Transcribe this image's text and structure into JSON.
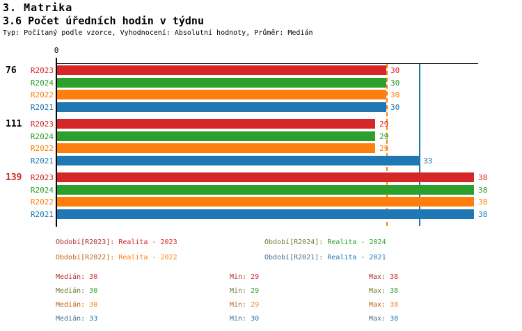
{
  "header": {
    "title": "3. Matrika",
    "subtitle": "3.6 Počet úředních hodin v týdnu",
    "meta": "Typ: Počítaný podle vzorce, Vyhodnocení: Absolutní hodnoty, Průměr: Medián"
  },
  "chart_data": {
    "type": "bar",
    "orientation": "horizontal",
    "title": "3.6 Počet úředních hodin v týdnu",
    "xlim": [
      0,
      38
    ],
    "origin_tick_label": "0",
    "grid": false,
    "row_order": [
      "R2023",
      "R2024",
      "R2022",
      "R2021"
    ],
    "series_meta": [
      {
        "id": "R2023",
        "color": "#d62728",
        "dark_color": "#b03030",
        "legend_label": "Období[R2023]:",
        "legend_value": "Realita - 2023"
      },
      {
        "id": "R2024",
        "color": "#2ca02c",
        "dark_color": "#6e7d2e",
        "legend_label": "Období[R2024]:",
        "legend_value": "Realita - 2024"
      },
      {
        "id": "R2022",
        "color": "#ff7f0e",
        "dark_color": "#bf6515",
        "legend_label": "Období[R2022]:",
        "legend_value": "Realita - 2022"
      },
      {
        "id": "R2021",
        "color": "#1f77b4",
        "dark_color": "#46708e",
        "legend_label": "Období[R2021]:",
        "legend_value": "Realita - 2021"
      }
    ],
    "groups": [
      {
        "label": "76",
        "label_color": "#000000",
        "values": [
          30,
          30,
          30,
          30
        ]
      },
      {
        "label": "111",
        "label_color": "#000000",
        "values": [
          29,
          29,
          29,
          33
        ]
      },
      {
        "label": "139",
        "label_color": "#d62728",
        "values": [
          38,
          38,
          38,
          38
        ]
      }
    ],
    "reference_lines": [
      {
        "value": 30,
        "color": "#ff7f0e",
        "style": "dashed"
      },
      {
        "value": 33,
        "color": "#1f77b4",
        "style": "solid"
      }
    ]
  },
  "legend": {
    "items": [
      {
        "series": "R2023",
        "row": 0,
        "col": 0
      },
      {
        "series": "R2024",
        "row": 0,
        "col": 1
      },
      {
        "series": "R2022",
        "row": 1,
        "col": 0
      },
      {
        "series": "R2021",
        "row": 1,
        "col": 1
      }
    ]
  },
  "stats": {
    "rows": [
      {
        "series": "R2023",
        "median_label": "Medián:",
        "median_value": "30",
        "min_label": "Min:",
        "min_value": "29",
        "max_label": "Max:",
        "max_value": "38"
      },
      {
        "series": "R2024",
        "median_label": "Medián:",
        "median_value": "30",
        "min_label": "Min:",
        "min_value": "29",
        "max_label": "Max:",
        "max_value": "38"
      },
      {
        "series": "R2022",
        "median_label": "Medián:",
        "median_value": "30",
        "min_label": "Min:",
        "min_value": "29",
        "max_label": "Max:",
        "max_value": "38"
      },
      {
        "series": "R2021",
        "median_label": "Medián:",
        "median_value": "33",
        "min_label": "Min:",
        "min_value": "30",
        "max_label": "Max:",
        "max_value": "38"
      }
    ]
  }
}
